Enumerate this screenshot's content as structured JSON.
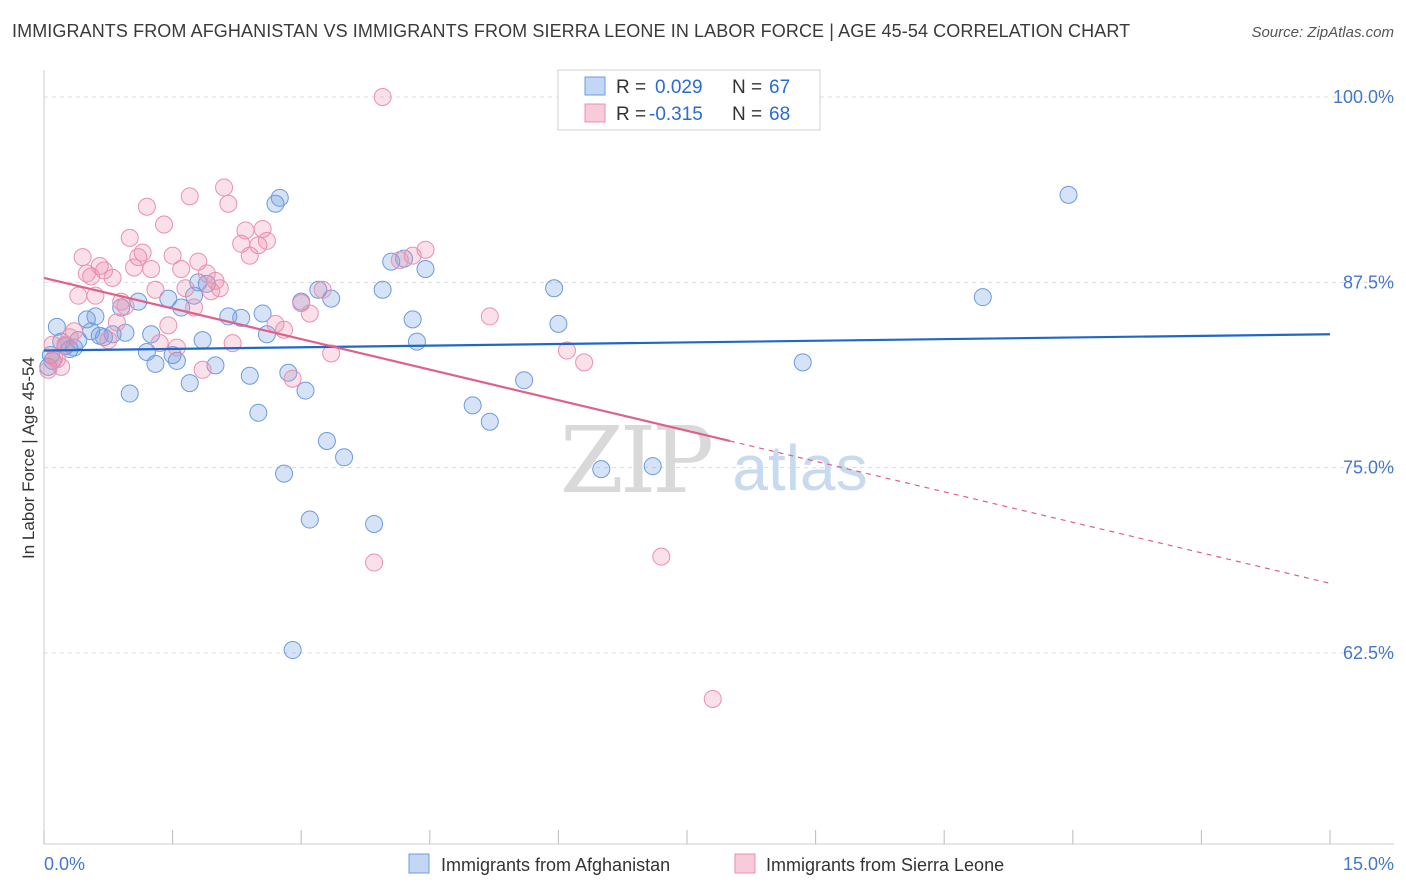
{
  "header": {
    "title": "IMMIGRANTS FROM AFGHANISTAN VS IMMIGRANTS FROM SIERRA LEONE IN LABOR FORCE | AGE 45-54 CORRELATION CHART",
    "source": "Source: ZipAtlas.com"
  },
  "watermark": {
    "zip": "ZIP",
    "atlas": "atlas"
  },
  "colors": {
    "blue": "#6b9be0",
    "blue_line": "#2068c8",
    "pink": "#ec8fae",
    "pink_line": "#e0608c",
    "grid": "#dcdcdc",
    "tick_label": "#4477cc"
  },
  "legend_box": {
    "rows": [
      {
        "r_label": "R =",
        "r_value": "0.029",
        "n_label": "N =",
        "n_value": "67"
      },
      {
        "r_label": "R =",
        "r_value": "-0.315",
        "n_label": "N =",
        "n_value": "68"
      }
    ]
  },
  "chart_data": {
    "type": "scatter",
    "title": "IMMIGRANTS FROM AFGHANISTAN VS IMMIGRANTS FROM SIERRA LEONE IN LABOR FORCE | AGE 45-54 CORRELATION CHART",
    "xlabel": "",
    "ylabel": "In Labor Force | Age 45-54",
    "xlim": [
      0,
      15
    ],
    "ylim": [
      50,
      101
    ],
    "x_tick_labels": [
      "0.0%",
      "15.0%"
    ],
    "y_ticks": [
      62.5,
      75.0,
      87.5,
      100.0
    ],
    "y_tick_labels": [
      "62.5%",
      "75.0%",
      "87.5%",
      "100.0%"
    ],
    "grid": true,
    "legend_position": "bottom",
    "series": [
      {
        "name": "Immigrants from Afghanistan",
        "color": "#6b9be0",
        "trend": {
          "x": [
            0,
            15
          ],
          "y": [
            82.9,
            84.0
          ]
        },
        "points": [
          [
            0.05,
            81.8
          ],
          [
            0.1,
            82.2
          ],
          [
            0.15,
            84.5
          ],
          [
            0.2,
            83.5
          ],
          [
            0.25,
            83.2
          ],
          [
            0.3,
            83.0
          ],
          [
            0.4,
            83.6
          ],
          [
            0.5,
            85.0
          ],
          [
            0.55,
            84.2
          ],
          [
            0.6,
            85.2
          ],
          [
            0.7,
            83.8
          ],
          [
            0.8,
            84.0
          ],
          [
            0.9,
            85.8
          ],
          [
            1.0,
            80.0
          ],
          [
            1.1,
            86.2
          ],
          [
            1.2,
            82.8
          ],
          [
            1.25,
            84.0
          ],
          [
            1.3,
            82.0
          ],
          [
            1.45,
            86.4
          ],
          [
            1.5,
            82.6
          ],
          [
            1.55,
            82.2
          ],
          [
            1.6,
            85.8
          ],
          [
            1.7,
            80.7
          ],
          [
            1.75,
            86.6
          ],
          [
            1.8,
            87.5
          ],
          [
            1.85,
            83.6
          ],
          [
            1.9,
            87.4
          ],
          [
            2.0,
            81.9
          ],
          [
            2.15,
            85.2
          ],
          [
            2.3,
            85.1
          ],
          [
            2.4,
            81.2
          ],
          [
            2.5,
            78.7
          ],
          [
            2.55,
            85.4
          ],
          [
            2.6,
            84.0
          ],
          [
            2.7,
            92.8
          ],
          [
            2.75,
            93.2
          ],
          [
            2.8,
            74.6
          ],
          [
            2.85,
            81.4
          ],
          [
            2.9,
            62.7
          ],
          [
            3.0,
            86.2
          ],
          [
            3.05,
            80.2
          ],
          [
            3.1,
            71.5
          ],
          [
            3.2,
            87.0
          ],
          [
            3.3,
            76.8
          ],
          [
            3.35,
            86.4
          ],
          [
            3.5,
            75.7
          ],
          [
            3.85,
            71.2
          ],
          [
            3.95,
            87.0
          ],
          [
            4.05,
            88.9
          ],
          [
            4.2,
            89.1
          ],
          [
            4.3,
            85.0
          ],
          [
            4.35,
            83.5
          ],
          [
            4.45,
            88.4
          ],
          [
            5.0,
            79.2
          ],
          [
            5.2,
            78.1
          ],
          [
            5.6,
            80.9
          ],
          [
            5.95,
            87.1
          ],
          [
            6.0,
            84.7
          ],
          [
            6.5,
            74.9
          ],
          [
            7.1,
            75.1
          ],
          [
            8.85,
            82.1
          ],
          [
            10.95,
            86.5
          ],
          [
            11.95,
            93.4
          ],
          [
            0.08,
            82.6
          ],
          [
            0.35,
            83.1
          ],
          [
            0.65,
            83.9
          ],
          [
            0.95,
            84.1
          ]
        ]
      },
      {
        "name": "Immigrants from Sierra Leone",
        "color": "#ec8fae",
        "trend": {
          "x": [
            0,
            8.0
          ],
          "y": [
            87.8,
            76.8
          ]
        },
        "trend_dashed": {
          "x": [
            8.0,
            15
          ],
          "y": [
            76.8,
            67.2
          ]
        },
        "points": [
          [
            0.05,
            81.6
          ],
          [
            0.1,
            83.3
          ],
          [
            0.15,
            82.3
          ],
          [
            0.2,
            81.8
          ],
          [
            0.25,
            83.3
          ],
          [
            0.3,
            83.8
          ],
          [
            0.35,
            84.2
          ],
          [
            0.4,
            86.6
          ],
          [
            0.45,
            89.2
          ],
          [
            0.5,
            88.1
          ],
          [
            0.55,
            87.9
          ],
          [
            0.6,
            86.6
          ],
          [
            0.65,
            88.6
          ],
          [
            0.7,
            88.3
          ],
          [
            0.75,
            83.6
          ],
          [
            0.8,
            87.8
          ],
          [
            0.85,
            84.8
          ],
          [
            0.9,
            86.2
          ],
          [
            0.95,
            85.9
          ],
          [
            1.0,
            90.5
          ],
          [
            1.05,
            88.5
          ],
          [
            1.1,
            89.2
          ],
          [
            1.15,
            89.5
          ],
          [
            1.2,
            92.6
          ],
          [
            1.25,
            88.4
          ],
          [
            1.3,
            87.0
          ],
          [
            1.35,
            83.4
          ],
          [
            1.4,
            91.4
          ],
          [
            1.45,
            84.6
          ],
          [
            1.5,
            89.3
          ],
          [
            1.55,
            83.1
          ],
          [
            1.6,
            88.4
          ],
          [
            1.65,
            87.1
          ],
          [
            1.7,
            93.3
          ],
          [
            1.75,
            85.8
          ],
          [
            1.8,
            88.9
          ],
          [
            1.85,
            81.6
          ],
          [
            1.9,
            88.1
          ],
          [
            1.95,
            86.9
          ],
          [
            2.0,
            87.6
          ],
          [
            2.05,
            87.1
          ],
          [
            2.1,
            93.9
          ],
          [
            2.15,
            92.8
          ],
          [
            2.2,
            83.4
          ],
          [
            2.3,
            90.1
          ],
          [
            2.35,
            91.0
          ],
          [
            2.4,
            89.3
          ],
          [
            2.5,
            90.0
          ],
          [
            2.55,
            91.1
          ],
          [
            2.6,
            90.3
          ],
          [
            2.7,
            84.7
          ],
          [
            2.8,
            84.3
          ],
          [
            2.9,
            81.0
          ],
          [
            3.0,
            86.1
          ],
          [
            3.1,
            85.4
          ],
          [
            3.25,
            87.0
          ],
          [
            3.35,
            82.7
          ],
          [
            3.85,
            68.6
          ],
          [
            3.95,
            100.0
          ],
          [
            4.15,
            89.0
          ],
          [
            4.3,
            89.3
          ],
          [
            4.45,
            89.7
          ],
          [
            5.2,
            85.2
          ],
          [
            6.1,
            82.9
          ],
          [
            6.3,
            82.1
          ],
          [
            7.2,
            69.0
          ],
          [
            7.8,
            59.4
          ],
          [
            0.12,
            82.4
          ]
        ]
      }
    ]
  }
}
